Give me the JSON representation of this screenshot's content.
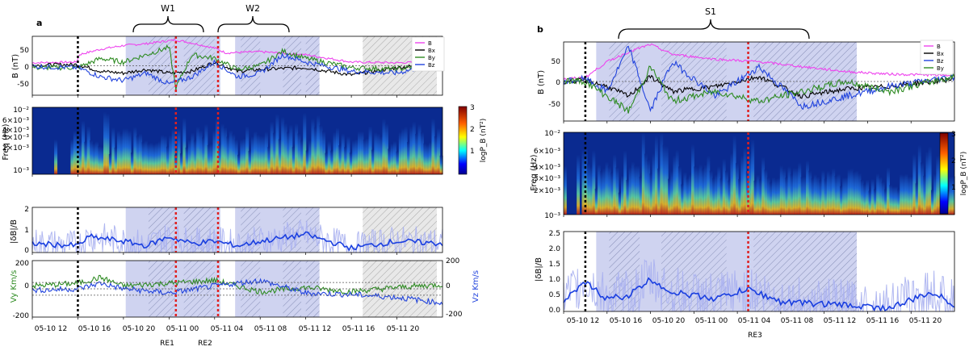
{
  "figure_a": {
    "panel_label": "a",
    "braces": [
      "W1",
      "W2"
    ],
    "x_ticks": [
      "05-10 12",
      "05-10 16",
      "05-10 20",
      "05-11 00",
      "05-11 04",
      "05-11 08",
      "05-11 12",
      "05-11 16",
      "05-11 20"
    ],
    "re_labels": [
      "RE1",
      "RE2"
    ],
    "panel_b": {
      "ylabel": "B (nT)",
      "yticks": [
        "50",
        "0",
        "-50"
      ],
      "legend": [
        "B",
        "Bx",
        "By",
        "Bz"
      ]
    },
    "panel_freq": {
      "ylabel": "Freq (Hz)",
      "yticks": [
        "10⁻²",
        "6×10⁻³",
        "4×10⁻³",
        "3×10⁻³",
        "2×10⁻³",
        "10⁻³"
      ],
      "cbar_ticks": [
        "3",
        "2",
        "1"
      ],
      "cbar_label": "logP_B (nT²)"
    },
    "panel_ratio": {
      "ylabel": "|δB|/B",
      "yticks": [
        "2",
        "1",
        "0"
      ]
    },
    "panel_v": {
      "ylabel_left": "Vy Km/s",
      "ylabel_right": "Vz Km/s",
      "yticks_left": [
        "200",
        "0",
        "-200"
      ],
      "yticks_right": [
        "200",
        "0",
        "-200"
      ]
    }
  },
  "figure_b": {
    "panel_label": "b",
    "braces": [
      "S1"
    ],
    "x_ticks": [
      "05-10 12",
      "05-10 16",
      "05-10 20",
      "05-11 00",
      "05-11 04",
      "05-11 08",
      "05-11 12",
      "05-11 16",
      "05-11 20"
    ],
    "re_labels": [
      "RE3"
    ],
    "panel_b": {
      "ylabel": "B (nT)",
      "yticks": [
        "50",
        "0",
        "-50"
      ],
      "legend": [
        "B",
        "Bx",
        "Bz",
        "By"
      ]
    },
    "panel_freq": {
      "ylabel": "Freq (Hz)",
      "yticks": [
        "10⁻²",
        "6×10⁻³",
        "4×10⁻³",
        "3×10⁻³",
        "2×10⁻³",
        "10⁻³"
      ],
      "cbar_ticks": [
        "3",
        "2",
        "1"
      ],
      "cbar_label": "logP_B (nT²)"
    },
    "panel_ratio": {
      "ylabel": "|δB|/B",
      "yticks": [
        "2.5",
        "2.0",
        "1.5",
        "1.0",
        "0.5",
        "0.0"
      ]
    }
  },
  "colors": {
    "B": "#ee44ee",
    "Bx": "#000000",
    "By": "#2e8b22",
    "Bz": "#2244dd",
    "shade": "#c3c8ec",
    "hatch": "#b8b8b8",
    "re_line": "#e02020",
    "start_line": "#000000"
  },
  "chart_data": [
    {
      "type": "line",
      "title": "a",
      "x_unit": "hours since 05-10 12:00",
      "xlim": [
        0,
        36
      ],
      "events": {
        "start": 4.0,
        "RE1": 12.6,
        "RE2": 16.3
      },
      "intervals_shaded": [
        [
          8.2,
          16.5
        ],
        [
          17.8,
          25.2
        ]
      ],
      "intervals_hatched": [
        [
          10.2,
          12.5
        ],
        [
          13.3,
          16.0
        ],
        [
          18.3,
          20.0
        ],
        [
          22.0,
          23.6
        ],
        [
          24.0,
          25.2
        ],
        [
          29.0,
          35.5
        ]
      ],
      "intervals_hatched_gray": [
        [
          29.0,
          35.5
        ]
      ],
      "series": [
        {
          "name": "B",
          "ylim": [
            -80,
            80
          ],
          "x": [
            0,
            3.9,
            4.1,
            6,
            8,
            10,
            12,
            12.6,
            14,
            16,
            17,
            20,
            24,
            28,
            32,
            36
          ],
          "values": [
            8,
            10,
            30,
            45,
            55,
            60,
            68,
            70,
            62,
            48,
            35,
            38,
            30,
            10,
            8,
            12
          ]
        },
        {
          "name": "Bx",
          "x": [
            0,
            4,
            6,
            8,
            10,
            12,
            14,
            16,
            18,
            20,
            24,
            28,
            32,
            36
          ],
          "values": [
            2,
            3,
            -15,
            -20,
            -10,
            -20,
            -15,
            10,
            -15,
            -10,
            -5,
            -25,
            -5,
            5
          ]
        },
        {
          "name": "By",
          "x": [
            0,
            4,
            6,
            8,
            10,
            12,
            12.6,
            14,
            16,
            18,
            20,
            22,
            24,
            28,
            32,
            36
          ],
          "values": [
            -5,
            -5,
            20,
            10,
            30,
            50,
            -60,
            30,
            20,
            -10,
            0,
            40,
            20,
            -5,
            -10,
            10
          ]
        },
        {
          "name": "Bz",
          "x": [
            0,
            4,
            6,
            8,
            10,
            12,
            14,
            16,
            18,
            20,
            22,
            24,
            28,
            32,
            36
          ],
          "values": [
            -2,
            -5,
            -30,
            -40,
            -20,
            -50,
            -30,
            10,
            -30,
            -20,
            30,
            10,
            -15,
            -20,
            10
          ]
        },
        {
          "name": "|dB|/B",
          "ylim": [
            0,
            2
          ],
          "x": [
            0,
            4,
            5,
            8,
            10,
            12,
            14,
            16,
            18,
            20,
            24,
            28,
            32,
            36
          ],
          "values": [
            0.4,
            0.3,
            0.7,
            0.5,
            0.3,
            0.7,
            0.4,
            0.5,
            0.3,
            0.5,
            0.8,
            0.2,
            0.5,
            0.4
          ]
        },
        {
          "name": "Vy",
          "ylim": [
            -200,
            200
          ],
          "x": [
            0,
            4,
            6,
            8,
            12,
            16,
            20,
            24,
            28,
            32,
            36
          ],
          "values": [
            20,
            40,
            80,
            20,
            40,
            60,
            -20,
            10,
            -20,
            10,
            30
          ]
        },
        {
          "name": "Vz",
          "x": [
            0,
            4,
            6,
            8,
            12,
            16,
            20,
            24,
            28,
            32,
            36
          ],
          "values": [
            -10,
            0,
            40,
            0,
            -30,
            20,
            60,
            -30,
            -40,
            -60,
            -100
          ]
        }
      ]
    },
    {
      "type": "line",
      "title": "b",
      "x_unit": "hours since 05-10 12:00",
      "xlim": [
        0,
        36
      ],
      "events": {
        "start": 2.0,
        "RE3": 17.0
      },
      "intervals_shaded": [
        [
          3.0,
          27.0
        ]
      ],
      "intervals_hatched": [
        [
          4.2,
          7.0
        ],
        [
          9.0,
          15.0
        ],
        [
          17.5,
          27.0
        ]
      ],
      "series": [
        {
          "name": "B",
          "ylim": [
            -80,
            80
          ],
          "x": [
            0,
            2,
            4,
            6,
            8,
            10,
            14,
            18,
            22,
            26,
            30,
            36
          ],
          "values": [
            5,
            8,
            40,
            60,
            75,
            55,
            45,
            40,
            30,
            20,
            15,
            12
          ]
        },
        {
          "name": "Bx",
          "x": [
            0,
            2,
            4,
            6,
            8,
            10,
            14,
            18,
            22,
            26,
            30,
            36
          ],
          "values": [
            0,
            2,
            -10,
            -30,
            10,
            -20,
            -10,
            10,
            -30,
            -15,
            -10,
            5
          ]
        },
        {
          "name": "Bz",
          "x": [
            0,
            2,
            4,
            6,
            8,
            10,
            14,
            18,
            22,
            26,
            30,
            36
          ],
          "values": [
            0,
            5,
            -20,
            70,
            -60,
            40,
            -30,
            30,
            -50,
            -30,
            -10,
            10
          ]
        },
        {
          "name": "By",
          "x": [
            0,
            2,
            4,
            6,
            8,
            10,
            14,
            18,
            22,
            26,
            30,
            36
          ],
          "values": [
            2,
            0,
            -30,
            -60,
            30,
            -40,
            -20,
            -40,
            -20,
            0,
            -20,
            10
          ]
        },
        {
          "name": "|dB|/B",
          "ylim": [
            0,
            2.5
          ],
          "x": [
            0,
            2,
            4,
            6,
            8,
            10,
            14,
            17,
            20,
            26,
            30,
            34,
            36
          ],
          "values": [
            0.3,
            0.9,
            0.4,
            0.5,
            1.0,
            0.6,
            0.4,
            0.7,
            0.3,
            0.2,
            0.1,
            0.6,
            0.2
          ]
        }
      ]
    }
  ]
}
